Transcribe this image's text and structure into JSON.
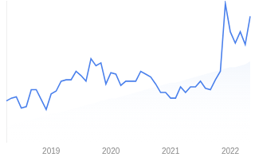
{
  "chart_data": {
    "type": "line",
    "categories": [
      null,
      null,
      null,
      null,
      null,
      null,
      null,
      null,
      null,
      "2019",
      null,
      null,
      null,
      null,
      null,
      null,
      null,
      null,
      null,
      null,
      null,
      "2020",
      null,
      null,
      null,
      null,
      null,
      null,
      null,
      null,
      null,
      null,
      null,
      "2021",
      null,
      null,
      null,
      null,
      null,
      null,
      null,
      null,
      null,
      null,
      null,
      "2022",
      null,
      null,
      null,
      null
    ],
    "series": [
      {
        "type": "line",
        "color": "#4a80ec",
        "marker": "none",
        "line_style": "solid",
        "values": [
          29,
          31,
          32,
          24,
          25,
          37,
          37,
          30,
          23,
          34,
          36,
          43,
          44,
          44,
          50,
          47,
          43,
          59,
          54,
          56,
          41,
          49,
          48,
          40,
          43,
          43,
          43,
          50,
          48,
          46,
          41,
          35,
          35,
          31,
          31,
          39,
          35,
          39,
          39,
          43,
          38,
          37,
          44,
          50,
          98,
          78,
          70,
          78,
          69,
          89
        ]
      },
      {
        "type": "area",
        "color": "#dce8fa",
        "values": [
          11,
          12,
          13,
          14,
          15,
          16,
          17,
          18,
          19,
          20,
          20,
          21,
          22,
          23,
          24,
          25,
          26,
          27,
          28,
          29,
          30,
          31,
          31,
          32,
          33,
          34,
          35,
          36,
          37,
          38,
          39,
          40,
          41,
          42,
          42,
          43,
          44,
          45,
          46,
          47,
          48,
          49,
          50,
          51,
          52,
          53,
          53,
          54,
          55,
          57
        ]
      }
    ],
    "ylim": [
      0,
      100
    ],
    "grid": false,
    "legend": false,
    "tick_labels": "x"
  }
}
